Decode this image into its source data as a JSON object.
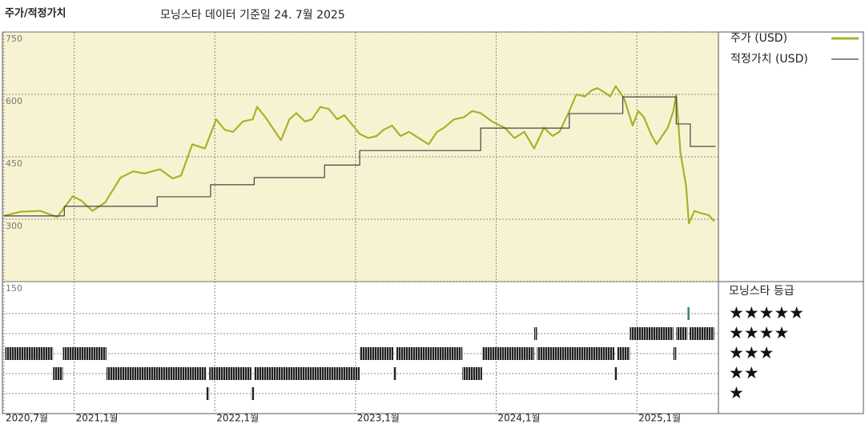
{
  "chart_data": {
    "type": "line",
    "title": "주가/적정가치",
    "subtitle": "모닝스타 데이터 기준일 24. 7월 2025",
    "xlim": [
      2020.49,
      2025.58
    ],
    "xticks": [
      {
        "value": 2020.5,
        "label": "2020,7월"
      },
      {
        "value": 2021.0,
        "label": "2021,1월"
      },
      {
        "value": 2022.0,
        "label": "2022,1월"
      },
      {
        "value": 2023.0,
        "label": "2023,1월"
      },
      {
        "value": 2024.0,
        "label": "2024,1월"
      },
      {
        "value": 2025.0,
        "label": "2025,1월"
      }
    ],
    "ylim": [
      150,
      750
    ],
    "yticks": [
      150,
      300,
      450,
      600,
      750
    ],
    "grid": true,
    "series": [
      {
        "name": "주가 (USD)",
        "color": "#a9b12a",
        "step": false,
        "x": [
          2020.5,
          2020.62,
          2020.76,
          2020.88,
          2020.99,
          2021.05,
          2021.13,
          2021.22,
          2021.33,
          2021.42,
          2021.5,
          2021.61,
          2021.7,
          2021.76,
          2021.84,
          2021.93,
          2022.01,
          2022.07,
          2022.13,
          2022.2,
          2022.27,
          2022.3,
          2022.36,
          2022.41,
          2022.47,
          2022.53,
          2022.58,
          2022.64,
          2022.69,
          2022.75,
          2022.81,
          2022.87,
          2022.92,
          2022.97,
          2023.03,
          2023.09,
          2023.15,
          2023.2,
          2023.26,
          2023.32,
          2023.38,
          2023.45,
          2023.52,
          2023.58,
          2023.63,
          2023.7,
          2023.77,
          2023.83,
          2023.89,
          2023.97,
          2024.06,
          2024.13,
          2024.2,
          2024.27,
          2024.34,
          2024.4,
          2024.45,
          2024.52,
          2024.57,
          2024.63,
          2024.68,
          2024.72,
          2024.77,
          2024.81,
          2024.85,
          2024.91,
          2024.97,
          2025.01,
          2025.05,
          2025.1,
          2025.14,
          2025.18,
          2025.22,
          2025.26,
          2025.28,
          2025.31,
          2025.35,
          2025.37,
          2025.41,
          2025.45,
          2025.51,
          2025.55
        ],
        "values": [
          308,
          318,
          320,
          305,
          355,
          345,
          320,
          340,
          400,
          415,
          410,
          420,
          398,
          405,
          480,
          470,
          540,
          515,
          510,
          535,
          540,
          570,
          545,
          520,
          490,
          540,
          555,
          535,
          540,
          570,
          565,
          540,
          550,
          530,
          505,
          495,
          500,
          515,
          525,
          500,
          510,
          495,
          480,
          510,
          520,
          540,
          545,
          560,
          555,
          535,
          520,
          495,
          510,
          470,
          520,
          500,
          510,
          560,
          600,
          595,
          610,
          615,
          605,
          595,
          620,
          590,
          525,
          560,
          545,
          505,
          480,
          500,
          520,
          560,
          600,
          460,
          380,
          290,
          320,
          315,
          310,
          295
        ]
      },
      {
        "name": "적정가치 (USD)",
        "color": "#444444",
        "step": true,
        "x": [
          2020.5,
          2020.93,
          2021.59,
          2021.97,
          2022.28,
          2022.78,
          2023.03,
          2023.89,
          2024.52,
          2024.9,
          2025.28,
          2025.38,
          2025.56
        ],
        "values": [
          308,
          331,
          354,
          383,
          400,
          430,
          465,
          519,
          554,
          594,
          529,
          475,
          475
        ]
      }
    ],
    "rating": {
      "title": "모닝스타 등급",
      "levels": [
        {
          "value": 5,
          "label": "★★★★★",
          "color": "#3f8a6e"
        },
        {
          "value": 4,
          "label": "★★★★",
          "color": "#222222"
        },
        {
          "value": 3,
          "label": "★★★",
          "color": "#222222"
        },
        {
          "value": 2,
          "label": "★★",
          "color": "#222222"
        },
        {
          "value": 1,
          "label": "★",
          "color": "#222222"
        }
      ],
      "periods": [
        {
          "start": 2020.51,
          "end": 2020.85,
          "value": 3
        },
        {
          "start": 2020.85,
          "end": 2020.92,
          "value": 2
        },
        {
          "start": 2020.92,
          "end": 2021.23,
          "value": 3
        },
        {
          "start": 2021.23,
          "end": 2021.94,
          "value": 2
        },
        {
          "start": 2021.94,
          "end": 2021.96,
          "value": 1
        },
        {
          "start": 2021.96,
          "end": 2022.26,
          "value": 2
        },
        {
          "start": 2022.26,
          "end": 2022.28,
          "value": 1
        },
        {
          "start": 2022.28,
          "end": 2023.03,
          "value": 2
        },
        {
          "start": 2023.03,
          "end": 2023.27,
          "value": 3
        },
        {
          "start": 2023.27,
          "end": 2023.29,
          "value": 2
        },
        {
          "start": 2023.29,
          "end": 2023.76,
          "value": 3
        },
        {
          "start": 2023.76,
          "end": 2023.9,
          "value": 2
        },
        {
          "start": 2023.9,
          "end": 2024.27,
          "value": 3
        },
        {
          "start": 2024.27,
          "end": 2024.29,
          "value": 4
        },
        {
          "start": 2024.29,
          "end": 2024.84,
          "value": 3
        },
        {
          "start": 2024.84,
          "end": 2024.86,
          "value": 2
        },
        {
          "start": 2024.86,
          "end": 2024.95,
          "value": 3
        },
        {
          "start": 2024.95,
          "end": 2025.26,
          "value": 4
        },
        {
          "start": 2025.26,
          "end": 2025.28,
          "value": 3
        },
        {
          "start": 2025.28,
          "end": 2025.36,
          "value": 4
        },
        {
          "start": 2025.36,
          "end": 2025.375,
          "value": 5
        },
        {
          "start": 2025.375,
          "end": 2025.55,
          "value": 4
        }
      ]
    }
  }
}
